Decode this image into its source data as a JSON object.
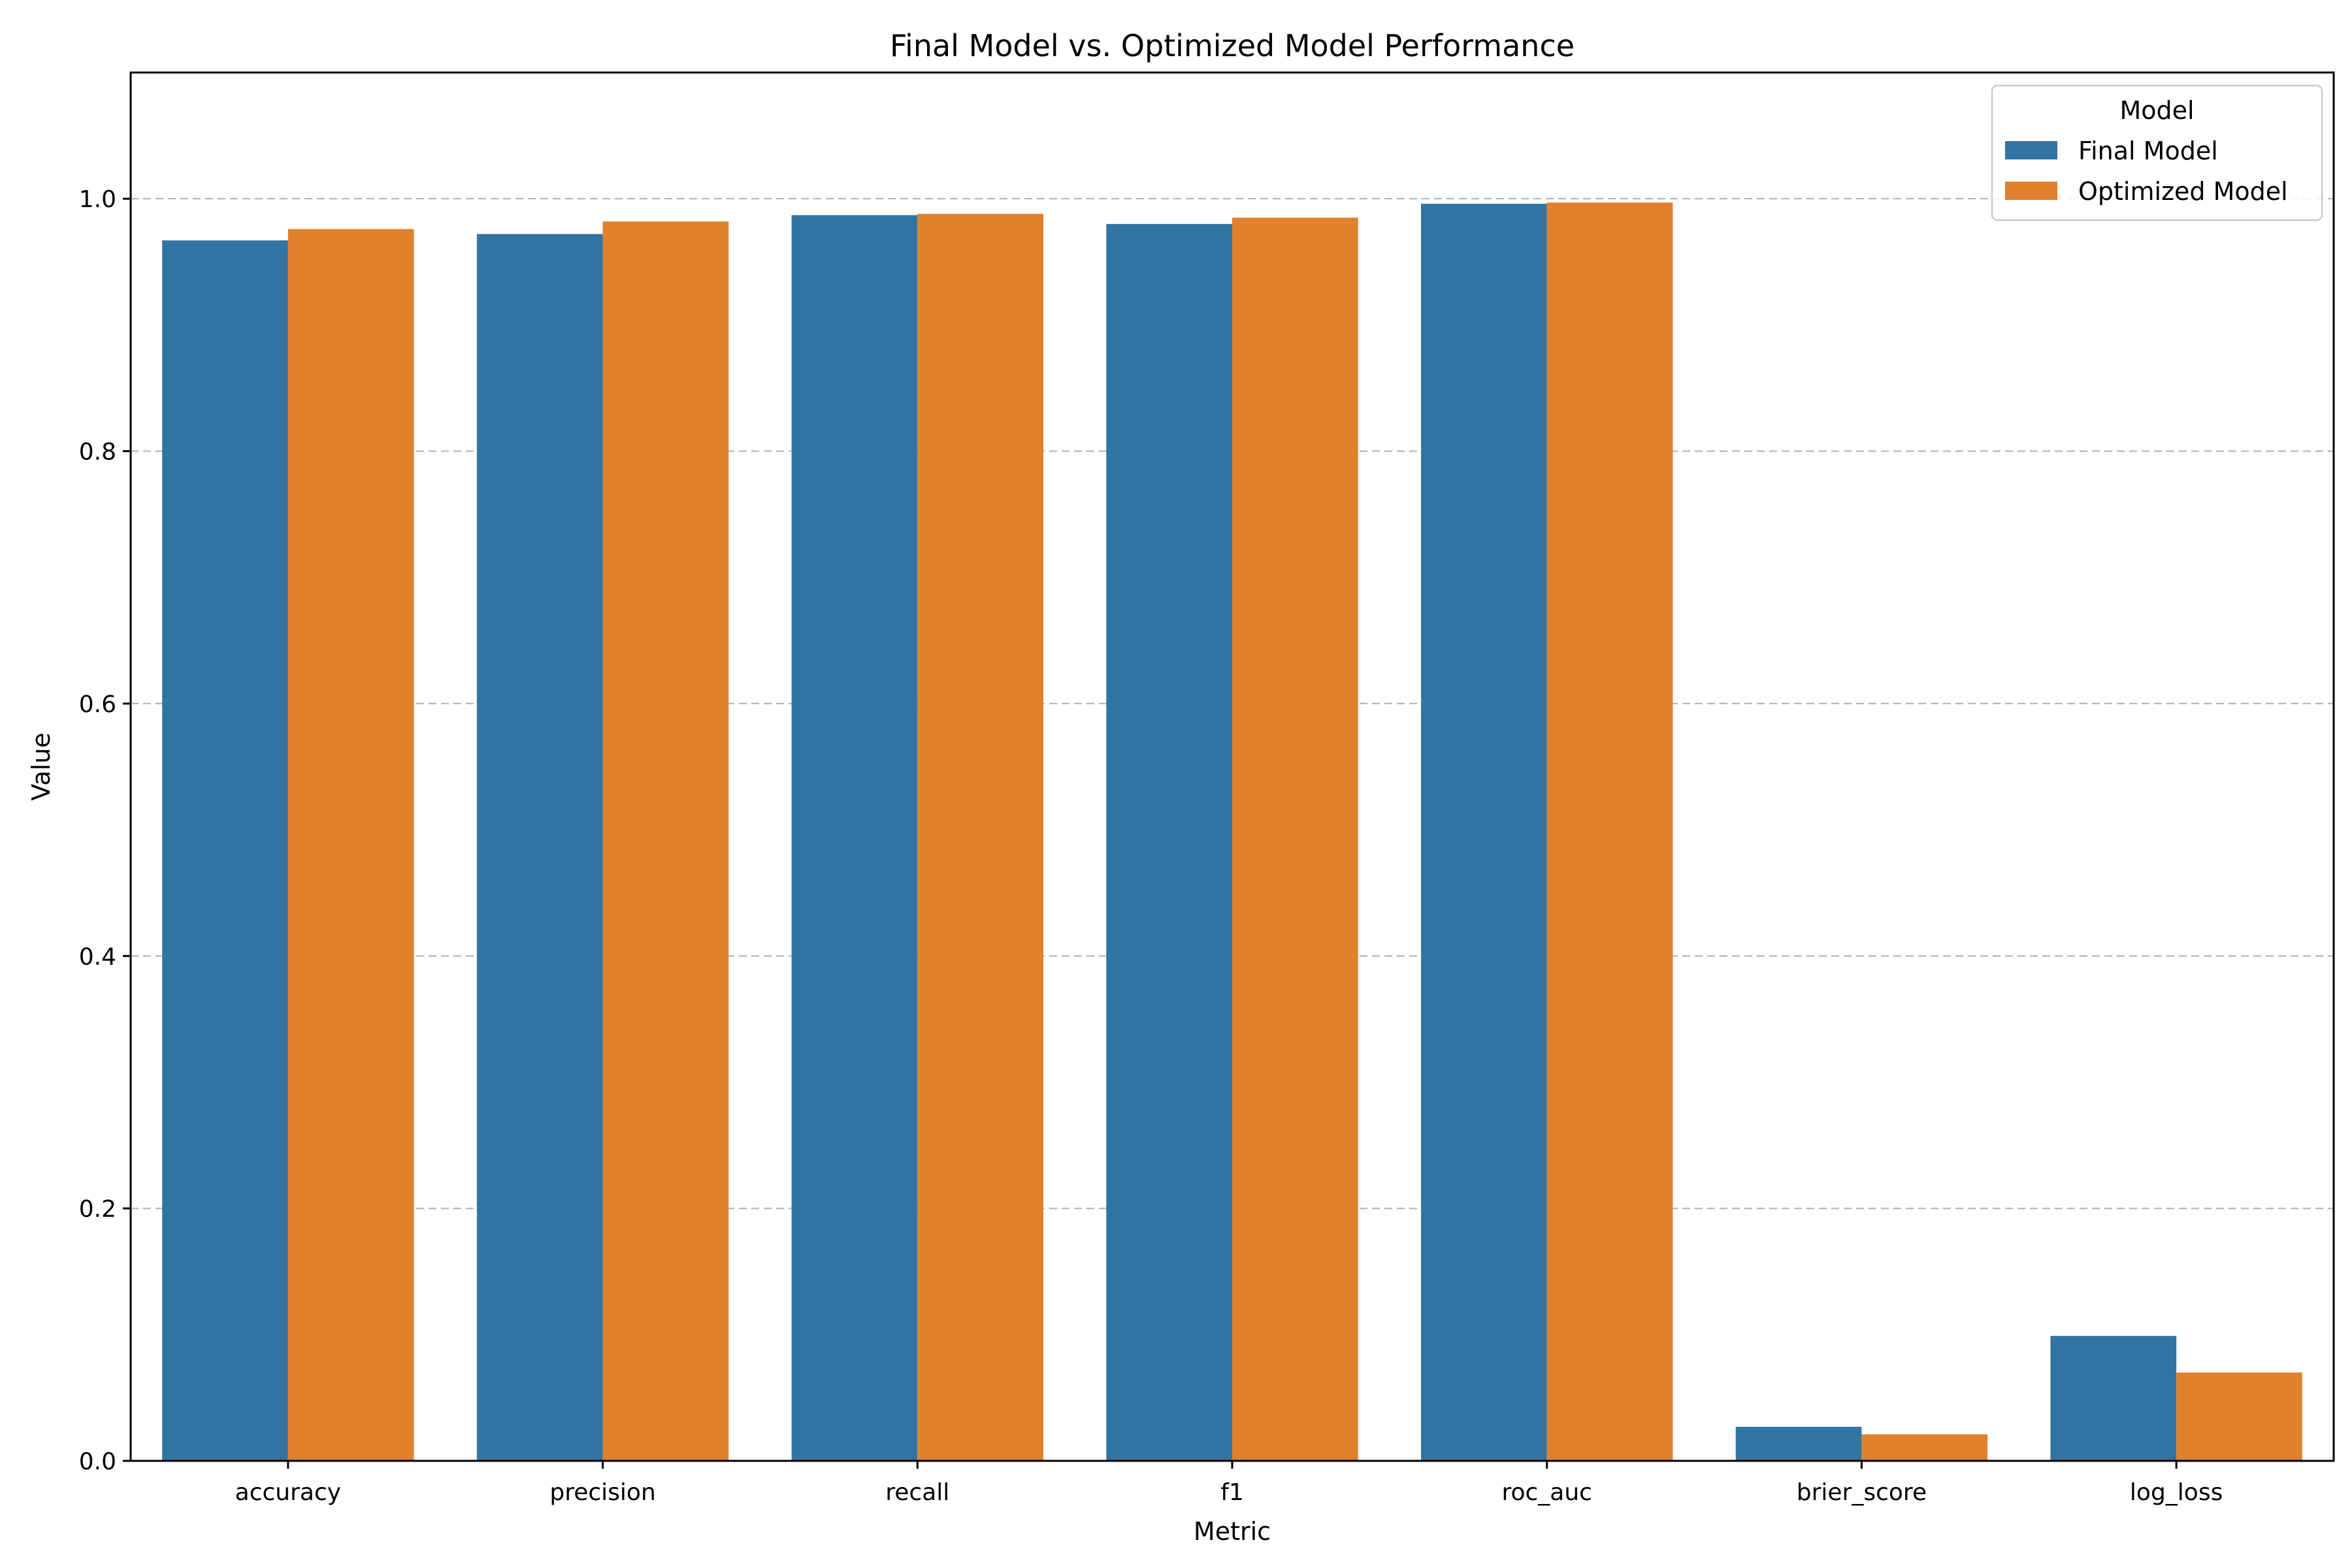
{
  "chart_data": {
    "type": "bar",
    "title": "Final Model vs. Optimized Model Performance",
    "xlabel": "Metric",
    "ylabel": "Value",
    "categories": [
      "accuracy",
      "precision",
      "recall",
      "f1",
      "roc_auc",
      "brier_score",
      "log_loss"
    ],
    "series": [
      {
        "name": "Final Model",
        "color": "#3274a1",
        "values": [
          0.967,
          0.972,
          0.987,
          0.98,
          0.996,
          0.027,
          0.099
        ]
      },
      {
        "name": "Optimized Model",
        "color": "#e1812c",
        "values": [
          0.976,
          0.982,
          0.988,
          0.985,
          0.997,
          0.021,
          0.07
        ]
      }
    ],
    "ylim": [
      0,
      1.1
    ],
    "yticks": [
      0.0,
      0.2,
      0.4,
      0.6,
      0.8,
      1.0
    ],
    "ytick_labels": [
      "0.0",
      "0.2",
      "0.4",
      "0.6",
      "0.8",
      "1.0"
    ],
    "grid": "y-dashed",
    "legend": {
      "title": "Model",
      "placement": "top-right"
    }
  }
}
